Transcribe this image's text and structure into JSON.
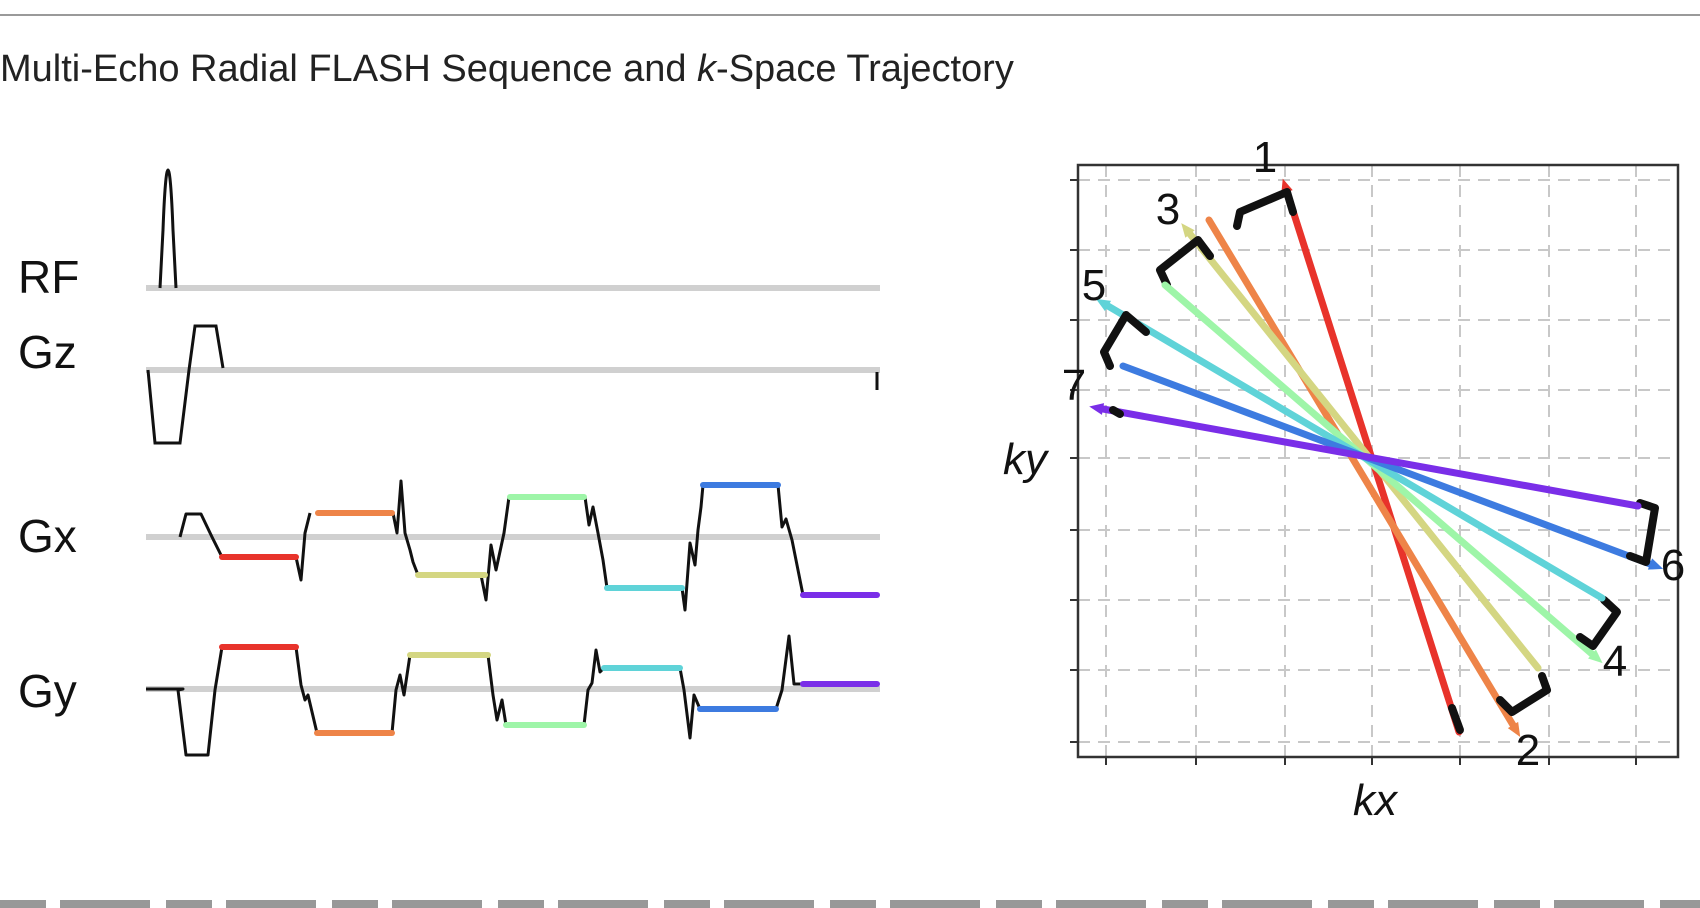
{
  "figure": {
    "title_prefix": "Multi-Echo Radial FLASH Sequence and ",
    "title_italic": "k",
    "title_suffix": "-Space Trajectory"
  },
  "sequence": {
    "channels": [
      {
        "id": "rf",
        "label": "RF"
      },
      {
        "id": "gz",
        "label": "Gz"
      },
      {
        "id": "gx",
        "label": "Gx"
      },
      {
        "id": "gy",
        "label": "Gy"
      }
    ],
    "baseline_color": "#d0d0d0",
    "waveform_color": "#111111"
  },
  "trajectory": {
    "xlabel": "kx",
    "ylabel": "ky",
    "spokes": [
      {
        "label": "1",
        "color": "#e8332b"
      },
      {
        "label": "2",
        "color": "#ee8448"
      },
      {
        "label": "3",
        "color": "#d4d682"
      },
      {
        "label": "4",
        "color": "#9ef5a8"
      },
      {
        "label": "5",
        "color": "#5fd3d8"
      },
      {
        "label": "6",
        "color": "#3d7be0"
      },
      {
        "label": "7",
        "color": "#7a2ee8"
      }
    ],
    "grid_color": "#c8c8c8"
  }
}
